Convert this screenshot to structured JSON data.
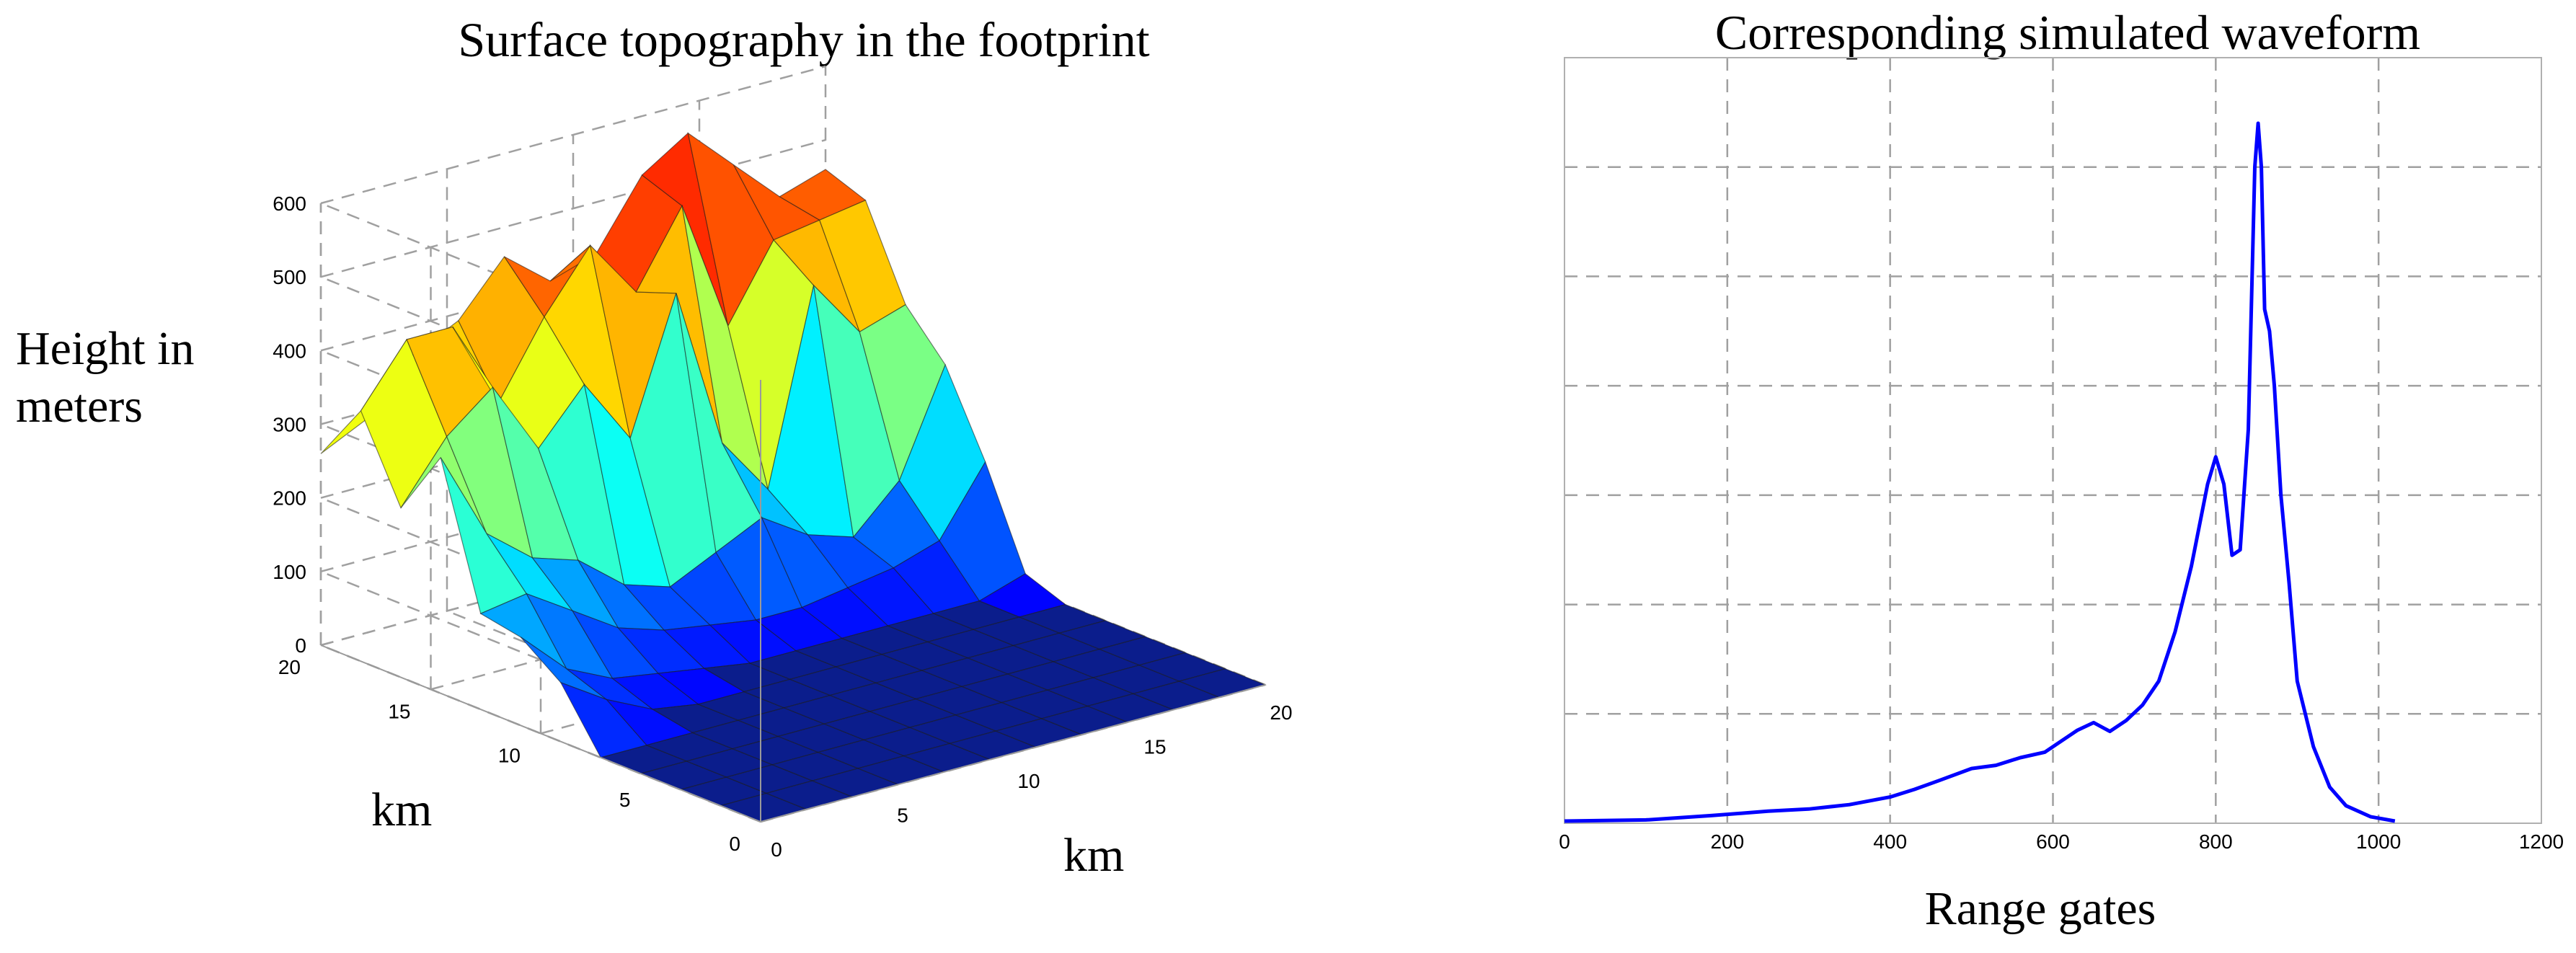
{
  "chart_data": [
    {
      "type": "surface",
      "title": "Surface topography in the footprint",
      "zlabel": "Height in meters",
      "xlabel": "km",
      "ylabel": "km",
      "xlim": [
        0,
        20
      ],
      "ylim": [
        0,
        20
      ],
      "zlim": [
        0,
        600
      ],
      "x_ticks": [
        0,
        5,
        10,
        15,
        20
      ],
      "y_ticks": [
        0,
        5,
        10,
        15,
        20
      ],
      "z_ticks": [
        0,
        100,
        200,
        300,
        400,
        500,
        600
      ],
      "grid": true,
      "colormap": "jet",
      "x": [
        0,
        1.82,
        3.64,
        5.45,
        7.27,
        9.09,
        10.91,
        12.73,
        14.55,
        16.36,
        18.18,
        20
      ],
      "y": [
        0,
        1.82,
        3.64,
        5.45,
        7.27,
        9.09,
        10.91,
        12.73,
        14.55,
        16.36,
        18.18,
        20
      ],
      "z": [
        [
          0,
          0,
          0,
          0,
          0,
          0,
          0,
          0,
          0,
          0,
          0,
          0
        ],
        [
          0,
          0,
          0,
          0,
          0,
          0,
          0,
          0,
          0,
          0,
          0,
          0
        ],
        [
          0,
          0,
          0,
          0,
          0,
          0,
          0,
          0,
          0,
          0,
          0,
          0
        ],
        [
          0,
          0,
          0,
          0,
          0,
          0,
          0,
          0,
          0,
          0,
          0,
          0
        ],
        [
          0,
          0,
          0,
          0,
          0,
          0,
          0,
          0,
          0,
          0,
          0,
          0
        ],
        [
          80,
          40,
          10,
          0,
          0,
          0,
          0,
          0,
          0,
          0,
          0,
          0
        ],
        [
          120,
          60,
          30,
          20,
          10,
          0,
          0,
          0,
          0,
          0,
          0,
          20
        ],
        [
          130,
          140,
          100,
          60,
          40,
          30,
          20,
          20,
          30,
          40,
          60,
          150
        ],
        [
          320,
          200,
          150,
          130,
          80,
          60,
          90,
          120,
          80,
          60,
          120,
          260
        ],
        [
          230,
          310,
          360,
          260,
          330,
          240,
          420,
          200,
          120,
          380,
          300,
          320
        ],
        [
          340,
          420,
          420,
          300,
          400,
          480,
          400,
          500,
          320,
          420,
          430,
          440
        ],
        [
          260,
          290,
          360,
          390,
          460,
          410,
          430,
          520,
          560,
          500,
          440,
          460
        ]
      ]
    },
    {
      "type": "line",
      "title": "Corresponding simulated waveform",
      "xlabel": "Range gates",
      "ylabel": "",
      "xlim": [
        0,
        1200
      ],
      "ylim": [
        0,
        7
      ],
      "x_ticks": [
        0,
        200,
        400,
        600,
        800,
        1000,
        1200
      ],
      "y_gridlines": [
        1,
        2,
        3,
        4,
        5,
        6
      ],
      "grid": true,
      "color": "#0000ff",
      "series": [
        {
          "x": [
            0,
            100,
            180,
            250,
            300,
            350,
            400,
            430,
            460,
            500,
            530,
            560,
            590,
            610,
            630,
            650,
            670,
            690,
            710,
            730,
            750,
            770,
            790,
            800,
            810,
            820,
            830,
            840,
            848,
            852,
            856,
            860,
            866,
            872,
            880,
            890,
            900,
            920,
            940,
            960,
            990,
            1020
          ],
          "y": [
            0.02,
            0.03,
            0.07,
            0.11,
            0.13,
            0.17,
            0.24,
            0.31,
            0.39,
            0.5,
            0.53,
            0.6,
            0.65,
            0.75,
            0.85,
            0.92,
            0.84,
            0.94,
            1.08,
            1.3,
            1.75,
            2.35,
            3.1,
            3.35,
            3.1,
            2.45,
            2.5,
            3.6,
            6.0,
            6.4,
            6.0,
            4.7,
            4.5,
            4.0,
            3.0,
            2.2,
            1.3,
            0.7,
            0.33,
            0.16,
            0.06,
            0.02
          ]
        }
      ]
    }
  ]
}
